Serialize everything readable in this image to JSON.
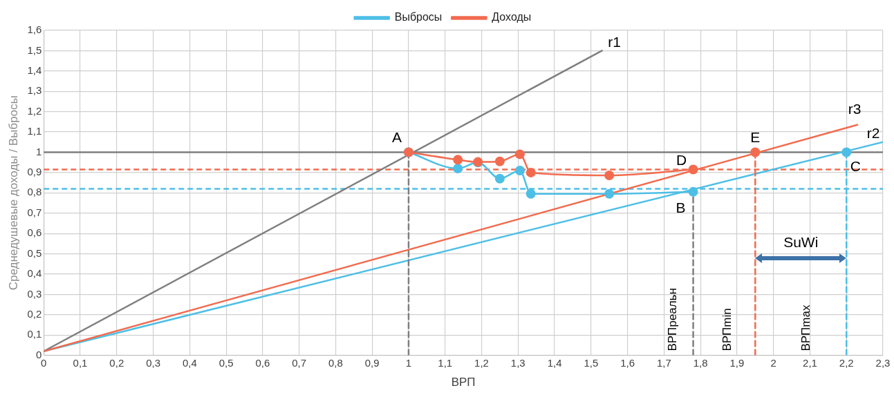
{
  "chart_data": {
    "type": "line",
    "xlabel": "ВРП",
    "ylabel": "Среднедушевые доходы / Выбросы",
    "xlim": [
      0,
      2.3
    ],
    "ylim": [
      0,
      1.6
    ],
    "xticks": [
      0,
      {
        "value": 0.1,
        "label": "0,1"
      },
      {
        "value": 0.2,
        "label": "0,2"
      },
      {
        "value": 0.3,
        "label": "0,3"
      },
      {
        "value": 0.4,
        "label": "0,4"
      },
      {
        "value": 0.5,
        "label": "0,5"
      },
      {
        "value": 0.6,
        "label": "0,6"
      },
      {
        "value": 0.7,
        "label": "0,7"
      },
      {
        "value": 0.8,
        "label": "0,8"
      },
      {
        "value": 0.9,
        "label": "0,9"
      },
      1,
      {
        "value": 1.1,
        "label": "1,1"
      },
      {
        "value": 1.2,
        "label": "1,2"
      },
      {
        "value": 1.3,
        "label": "1,3"
      },
      {
        "value": 1.4,
        "label": "1,4"
      },
      {
        "value": 1.5,
        "label": "1,5"
      },
      {
        "value": 1.6,
        "label": "1,6"
      },
      {
        "value": 1.7,
        "label": "1,7"
      },
      {
        "value": 1.8,
        "label": "1,8"
      },
      {
        "value": 1.9,
        "label": "1,9"
      },
      2,
      {
        "value": 2.1,
        "label": "2,1"
      },
      {
        "value": 2.2,
        "label": "2,2"
      },
      {
        "value": 2.3,
        "label": "2,3"
      }
    ],
    "yticks": [
      0,
      {
        "value": 0.1,
        "label": "0,1"
      },
      {
        "value": 0.2,
        "label": "0,2"
      },
      {
        "value": 0.3,
        "label": "0,3"
      },
      {
        "value": 0.4,
        "label": "0,4"
      },
      {
        "value": 0.5,
        "label": "0,5"
      },
      {
        "value": 0.6,
        "label": "0,6"
      },
      {
        "value": 0.7,
        "label": "0,7"
      },
      {
        "value": 0.8,
        "label": "0,8"
      },
      {
        "value": 0.9,
        "label": "0,9"
      },
      1,
      {
        "value": 1.1,
        "label": "1,1"
      },
      {
        "value": 1.2,
        "label": "1,2"
      },
      {
        "value": 1.3,
        "label": "1,3"
      },
      {
        "value": 1.4,
        "label": "1,4"
      },
      {
        "value": 1.5,
        "label": "1,5"
      },
      {
        "value": 1.6,
        "label": "1,6"
      }
    ],
    "grid": true,
    "legend": "top",
    "series": [
      {
        "name": "Выбросы",
        "color": "#4dbfe6",
        "marker": "circle",
        "x": [
          1,
          1.135,
          1.19,
          1.25,
          1.305,
          1.335,
          1.55,
          1.78
        ],
        "values": [
          1,
          0.92,
          0.95,
          0.87,
          0.91,
          0.795,
          0.795,
          0.805
        ]
      },
      {
        "name": "Доходы",
        "color": "#f26b4f",
        "marker": "circle",
        "x": [
          1,
          1.135,
          1.19,
          1.25,
          1.305,
          1.335,
          1.55,
          1.78
        ],
        "values": [
          1,
          0.963,
          0.952,
          0.955,
          0.99,
          0.9,
          0.886,
          0.915
        ]
      },
      {
        "type": "line",
        "color": "#7f7f7f",
        "marker": "none",
        "x": [
          0,
          1.53
        ],
        "values": [
          0.02,
          1.5
        ]
      },
      {
        "type": "line",
        "color": "#4dbfe6",
        "marker": "none",
        "x": [
          0,
          2.3
        ],
        "values": [
          0.02,
          1.05
        ]
      },
      {
        "type": "line",
        "color": "#f26b4f",
        "marker": "none",
        "x": [
          0,
          2.23
        ],
        "values": [
          0.02,
          1.135
        ]
      },
      {
        "type": "scatter",
        "color": "#4dbfe6",
        "marker": "circle",
        "x": [
          2.2
        ],
        "values": [
          1
        ]
      },
      {
        "type": "scatter",
        "color": "#f26b4f",
        "marker": "circle",
        "x": [
          1.95
        ],
        "values": [
          1
        ]
      },
      {
        "type": "line",
        "color": "#7f7f7f",
        "marker": "none",
        "line_style": "dashed",
        "x": [
          1,
          1
        ],
        "values": [
          0,
          1
        ]
      },
      {
        "type": "line",
        "color": "#7f7f7f",
        "marker": "none",
        "line_style": "dashed",
        "x": [
          1.78,
          1.78
        ],
        "values": [
          0,
          0.805
        ]
      },
      {
        "type": "line",
        "color": "#f26b4f",
        "marker": "none",
        "line_style": "dashed",
        "x": [
          1.95,
          1.95
        ],
        "values": [
          0,
          1
        ]
      },
      {
        "type": "line",
        "color": "#4dbfe6",
        "marker": "none",
        "line_style": "dashed",
        "x": [
          2.2,
          2.2
        ],
        "values": [
          0,
          1
        ]
      }
    ],
    "ref_lines": [
      {
        "axis": "y",
        "value": 1,
        "color": "#7f7f7f",
        "line_style": "solid"
      },
      {
        "axis": "y",
        "value": 0.915,
        "color": "#f26b4f",
        "line_style": "dashed"
      },
      {
        "axis": "y",
        "value": 0.82,
        "color": "#4dbfe6",
        "line_style": "dashed"
      }
    ],
    "annotations": [
      "A",
      "B",
      "C",
      "D",
      "E",
      "r1",
      "r2",
      "r3",
      "ВРПреальн",
      "ВРПmin",
      "ВРПmax",
      "SuWi"
    ]
  }
}
